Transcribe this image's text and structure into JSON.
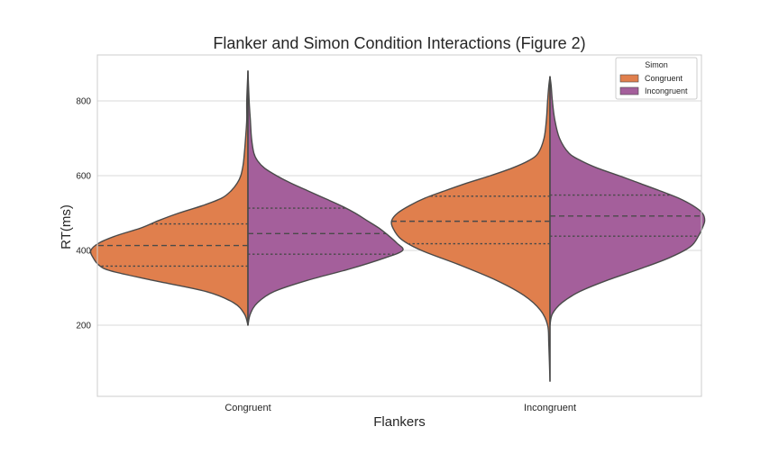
{
  "chart_data": {
    "type": "violin",
    "title": "Flanker and Simon Condition Interactions (Figure 2)",
    "xlabel": "Flankers",
    "ylabel": "RT(ms)",
    "categories": [
      "Congruent",
      "Incongruent"
    ],
    "ylim": [
      30,
      940
    ],
    "yticks": [
      200,
      400,
      600,
      800
    ],
    "grid": true,
    "split": true,
    "legend": {
      "title": "Simon",
      "position": "top-right",
      "entries": [
        {
          "label": "Congruent",
          "color": "#e07f4d"
        },
        {
          "label": "Incongruent",
          "color": "#a45f9b"
        }
      ]
    },
    "series": [
      {
        "name": "Congruent",
        "color": "#e07f4d",
        "side": "left",
        "violins": [
          {
            "category": "Congruent",
            "min": 200,
            "max": 880,
            "quartiles": [
              358,
              413,
              471
            ],
            "profile": [
              [
                200,
                0
              ],
              [
                230,
                3
              ],
              [
                260,
                12
              ],
              [
                290,
                35
              ],
              [
                320,
                80
              ],
              [
                345,
                115
              ],
              [
                360,
                125
              ],
              [
                380,
                130
              ],
              [
                400,
                132
              ],
              [
                420,
                125
              ],
              [
                440,
                110
              ],
              [
                460,
                90
              ],
              [
                480,
                75
              ],
              [
                500,
                58
              ],
              [
                520,
                38
              ],
              [
                540,
                22
              ],
              [
                560,
                14
              ],
              [
                580,
                9
              ],
              [
                600,
                6
              ],
              [
                630,
                4
              ],
              [
                660,
                3
              ],
              [
                700,
                2
              ],
              [
                750,
                1
              ],
              [
                800,
                1
              ],
              [
                880,
                0
              ]
            ]
          },
          {
            "category": "Incongruent",
            "min": 50,
            "max": 865,
            "quartiles": [
              418,
              478,
              545
            ],
            "profile": [
              [
                50,
                0
              ],
              [
                150,
                1
              ],
              [
                200,
                2
              ],
              [
                240,
                8
              ],
              [
                280,
                22
              ],
              [
                320,
                45
              ],
              [
                360,
                75
              ],
              [
                400,
                108
              ],
              [
                430,
                125
              ],
              [
                460,
                132
              ],
              [
                480,
                133
              ],
              [
                500,
                128
              ],
              [
                520,
                118
              ],
              [
                540,
                105
              ],
              [
                560,
                88
              ],
              [
                580,
                70
              ],
              [
                600,
                50
              ],
              [
                620,
                32
              ],
              [
                640,
                18
              ],
              [
                660,
                10
              ],
              [
                700,
                5
              ],
              [
                750,
                3
              ],
              [
                800,
                2
              ],
              [
                840,
                1
              ],
              [
                865,
                0
              ]
            ]
          }
        ]
      },
      {
        "name": "Incongruent",
        "color": "#a45f9b",
        "side": "right",
        "violins": [
          {
            "category": "Congruent",
            "min": 200,
            "max": 880,
            "quartiles": [
              390,
              445,
              513
            ],
            "profile": [
              [
                200,
                0
              ],
              [
                230,
                2
              ],
              [
                260,
                8
              ],
              [
                290,
                22
              ],
              [
                320,
                50
              ],
              [
                350,
                85
              ],
              [
                380,
                115
              ],
              [
                400,
                130
              ],
              [
                420,
                125
              ],
              [
                440,
                118
              ],
              [
                460,
                110
              ],
              [
                480,
                100
              ],
              [
                500,
                90
              ],
              [
                520,
                78
              ],
              [
                540,
                64
              ],
              [
                560,
                50
              ],
              [
                580,
                36
              ],
              [
                600,
                24
              ],
              [
                620,
                14
              ],
              [
                640,
                8
              ],
              [
                660,
                5
              ],
              [
                700,
                3
              ],
              [
                750,
                2
              ],
              [
                800,
                1
              ],
              [
                880,
                0
              ]
            ]
          },
          {
            "category": "Incongruent",
            "min": 200,
            "max": 865,
            "quartiles": [
              438,
              492,
              548
            ],
            "profile": [
              [
                200,
                0
              ],
              [
                230,
                2
              ],
              [
                260,
                10
              ],
              [
                290,
                25
              ],
              [
                320,
                48
              ],
              [
                350,
                75
              ],
              [
                380,
                100
              ],
              [
                410,
                118
              ],
              [
                440,
                125
              ],
              [
                460,
                128
              ],
              [
                480,
                130
              ],
              [
                500,
                128
              ],
              [
                520,
                120
              ],
              [
                540,
                108
              ],
              [
                560,
                92
              ],
              [
                580,
                75
              ],
              [
                600,
                58
              ],
              [
                620,
                40
              ],
              [
                640,
                26
              ],
              [
                660,
                16
              ],
              [
                700,
                8
              ],
              [
                750,
                4
              ],
              [
                800,
                2
              ],
              [
                840,
                1
              ],
              [
                865,
                0
              ]
            ]
          }
        ]
      }
    ]
  }
}
